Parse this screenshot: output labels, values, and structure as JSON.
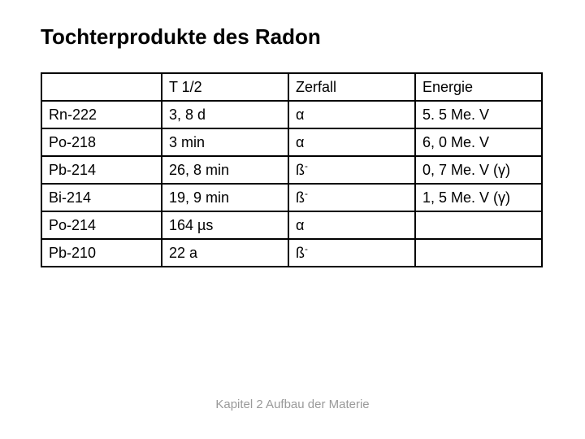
{
  "title": "Tochterprodukte des Radon",
  "footer": "Kapitel 2 Aufbau der Materie",
  "table": {
    "columns": [
      "",
      "T 1/2",
      "Zerfall",
      "Energie"
    ],
    "rows": [
      [
        "Rn-222",
        "3, 8 d",
        "α",
        "5. 5 Me. V"
      ],
      [
        "Po-218",
        "3 min",
        "α",
        "6, 0 Me. V"
      ],
      [
        "Pb-214",
        "26, 8 min",
        "ß-",
        "0, 7 Me. V (γ)"
      ],
      [
        "Bi-214",
        "19, 9 min",
        "ß-",
        "1, 5 Me. V (γ)"
      ],
      [
        "Po-214",
        "164 µs",
        "α",
        ""
      ],
      [
        "Pb-210",
        "22 a",
        "ß-",
        ""
      ]
    ]
  }
}
